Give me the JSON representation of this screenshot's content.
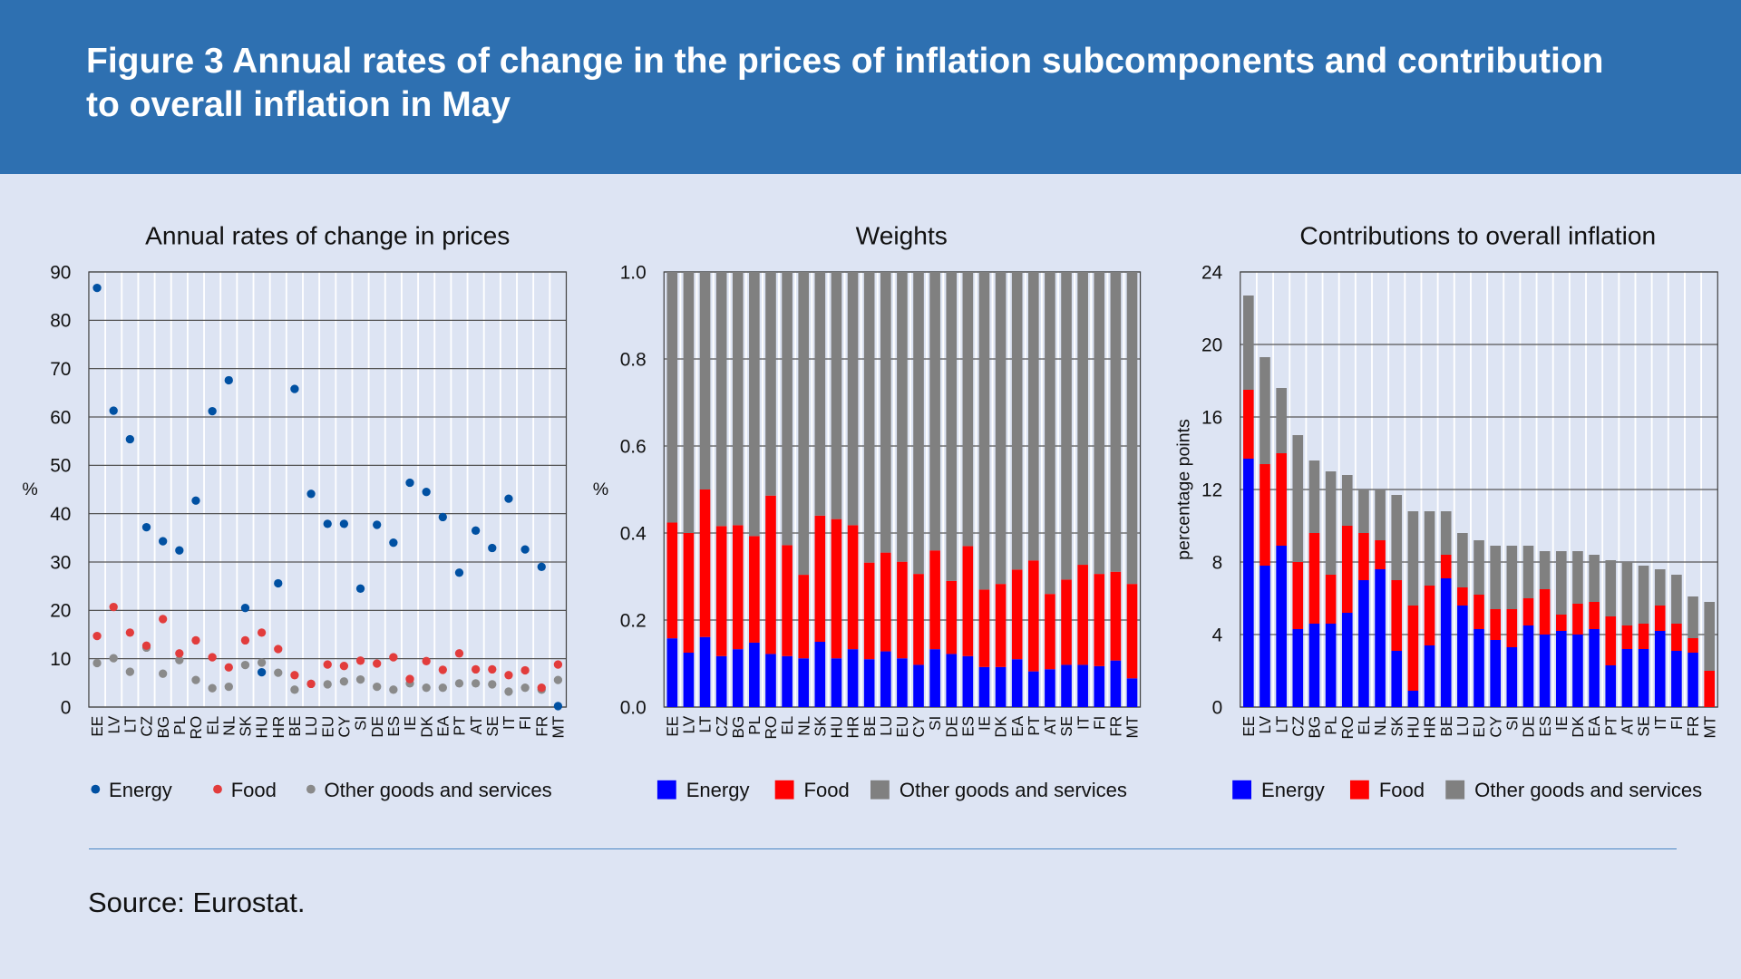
{
  "header": {
    "title": "Figure 3 Annual rates of change in the prices of inflation subcomponents and contribution to overall inflation in May"
  },
  "source": "Source: Eurostat.",
  "colors": {
    "header_bg": "#2e70b1",
    "background": "#dde4f3",
    "energy_dot": "#0050a2",
    "food_dot": "#e23c3c",
    "other_dot": "#8a8a8a",
    "energy_bar": "#0000ff",
    "food_bar": "#ff0000",
    "other_bar": "#808080"
  },
  "chart_data": [
    {
      "type": "scatter",
      "title": "Annual rates of change in prices",
      "ylabel": "%",
      "ylim": [
        0,
        90
      ],
      "yticks": [
        0,
        10,
        20,
        30,
        40,
        50,
        60,
        70,
        80,
        90
      ],
      "grid": true,
      "legend_placement": "bottom",
      "categories": [
        "EE",
        "LV",
        "LT",
        "CZ",
        "BG",
        "PL",
        "RO",
        "EL",
        "NL",
        "SK",
        "HU",
        "HR",
        "BE",
        "LU",
        "EU",
        "CY",
        "SI",
        "DE",
        "ES",
        "IE",
        "DK",
        "EA",
        "PT",
        "AT",
        "SE",
        "IT",
        "FI",
        "FR",
        "MT"
      ],
      "series": [
        {
          "name": "Energy",
          "values": [
            86.7,
            61.3,
            55.4,
            37.2,
            34.3,
            32.4,
            42.7,
            61.2,
            67.6,
            20.5,
            7.2,
            25.6,
            65.8,
            44.1,
            37.9,
            37.9,
            24.5,
            37.7,
            34.0,
            46.4,
            44.5,
            39.3,
            27.8,
            36.5,
            32.9,
            43.1,
            32.6,
            29.0,
            0.2
          ]
        },
        {
          "name": "Food",
          "values": [
            14.7,
            20.7,
            15.4,
            12.7,
            18.2,
            11.1,
            13.8,
            10.3,
            8.2,
            13.8,
            15.4,
            12.0,
            6.6,
            4.8,
            8.8,
            8.5,
            9.6,
            9.0,
            10.3,
            5.8,
            9.5,
            7.7,
            11.1,
            7.8,
            7.8,
            6.6,
            7.6,
            4.0,
            8.8
          ]
        },
        {
          "name": "Other goods and services",
          "values": [
            9.1,
            10.1,
            7.3,
            12.3,
            6.9,
            9.7,
            5.6,
            3.9,
            4.2,
            8.7,
            9.2,
            7.1,
            3.6,
            4.8,
            4.7,
            5.3,
            5.7,
            4.2,
            3.6,
            4.9,
            4.0,
            4.0,
            4.9,
            4.9,
            4.7,
            3.2,
            4.0,
            3.6,
            5.6
          ]
        }
      ]
    },
    {
      "type": "bar",
      "stacked": true,
      "title": "Weights",
      "ylabel": "%",
      "ylim": [
        0,
        1.0
      ],
      "yticks": [
        "0.0",
        "0.2",
        "0.4",
        "0.6",
        "0.8",
        "1.0"
      ],
      "grid": true,
      "legend_placement": "bottom",
      "categories": [
        "EE",
        "LV",
        "LT",
        "CZ",
        "BG",
        "PL",
        "RO",
        "EL",
        "NL",
        "SK",
        "HU",
        "HR",
        "BE",
        "LU",
        "EU",
        "CY",
        "SI",
        "DE",
        "ES",
        "IE",
        "DK",
        "EA",
        "PT",
        "AT",
        "SE",
        "IT",
        "FI",
        "FR",
        "MT"
      ],
      "series": [
        {
          "name": "Energy",
          "values": [
            0.158,
            0.125,
            0.161,
            0.117,
            0.133,
            0.148,
            0.122,
            0.117,
            0.112,
            0.15,
            0.112,
            0.133,
            0.11,
            0.128,
            0.112,
            0.097,
            0.133,
            0.122,
            0.117,
            0.092,
            0.092,
            0.11,
            0.082,
            0.087,
            0.097,
            0.097,
            0.094,
            0.107,
            0.066
          ]
        },
        {
          "name": "Food",
          "values": [
            0.266,
            0.275,
            0.339,
            0.299,
            0.285,
            0.245,
            0.364,
            0.255,
            0.192,
            0.29,
            0.32,
            0.285,
            0.222,
            0.227,
            0.222,
            0.209,
            0.227,
            0.168,
            0.253,
            0.178,
            0.191,
            0.206,
            0.255,
            0.173,
            0.196,
            0.23,
            0.212,
            0.204,
            0.217
          ]
        },
        {
          "name": "Other goods and services",
          "values": [
            0.576,
            0.6,
            0.5,
            0.584,
            0.582,
            0.607,
            0.514,
            0.628,
            0.696,
            0.56,
            0.568,
            0.582,
            0.668,
            0.645,
            0.666,
            0.694,
            0.64,
            0.71,
            0.63,
            0.73,
            0.717,
            0.684,
            0.663,
            0.74,
            0.707,
            0.673,
            0.694,
            0.689,
            0.717
          ]
        }
      ]
    },
    {
      "type": "bar",
      "stacked": true,
      "title": "Contributions to overall inflation",
      "ylabel": "percentage points",
      "ylim": [
        0,
        24
      ],
      "yticks": [
        0,
        4,
        8,
        12,
        16,
        20,
        24
      ],
      "grid": true,
      "legend_placement": "bottom",
      "categories": [
        "EE",
        "LV",
        "LT",
        "CZ",
        "BG",
        "PL",
        "RO",
        "EL",
        "NL",
        "SK",
        "HU",
        "HR",
        "BE",
        "LU",
        "EU",
        "CY",
        "SI",
        "DE",
        "ES",
        "IE",
        "DK",
        "EA",
        "PT",
        "AT",
        "SE",
        "IT",
        "FI",
        "FR",
        "MT"
      ],
      "series": [
        {
          "name": "Energy",
          "values": [
            13.7,
            7.8,
            8.9,
            4.3,
            4.6,
            4.6,
            5.2,
            7.0,
            7.6,
            3.1,
            0.9,
            3.4,
            7.1,
            5.6,
            4.3,
            3.7,
            3.3,
            4.5,
            4.0,
            4.2,
            4.0,
            4.3,
            2.3,
            3.2,
            3.2,
            4.2,
            3.1,
            3.0,
            0.0
          ]
        },
        {
          "name": "Food",
          "values": [
            3.8,
            5.6,
            5.1,
            3.7,
            5.0,
            2.7,
            4.8,
            2.6,
            1.6,
            3.9,
            4.7,
            3.3,
            1.3,
            1.0,
            1.9,
            1.7,
            2.1,
            1.5,
            2.5,
            0.9,
            1.7,
            1.5,
            2.7,
            1.3,
            1.4,
            1.4,
            1.5,
            0.8,
            2.0
          ]
        },
        {
          "name": "Other goods and services",
          "values": [
            5.2,
            5.9,
            3.6,
            7.0,
            4.0,
            5.7,
            2.8,
            2.4,
            2.8,
            4.7,
            5.2,
            4.1,
            2.4,
            3.0,
            3.0,
            3.5,
            3.5,
            2.9,
            2.1,
            3.5,
            2.9,
            2.6,
            3.1,
            3.5,
            3.2,
            2.0,
            2.7,
            2.3,
            3.8
          ]
        }
      ]
    }
  ]
}
